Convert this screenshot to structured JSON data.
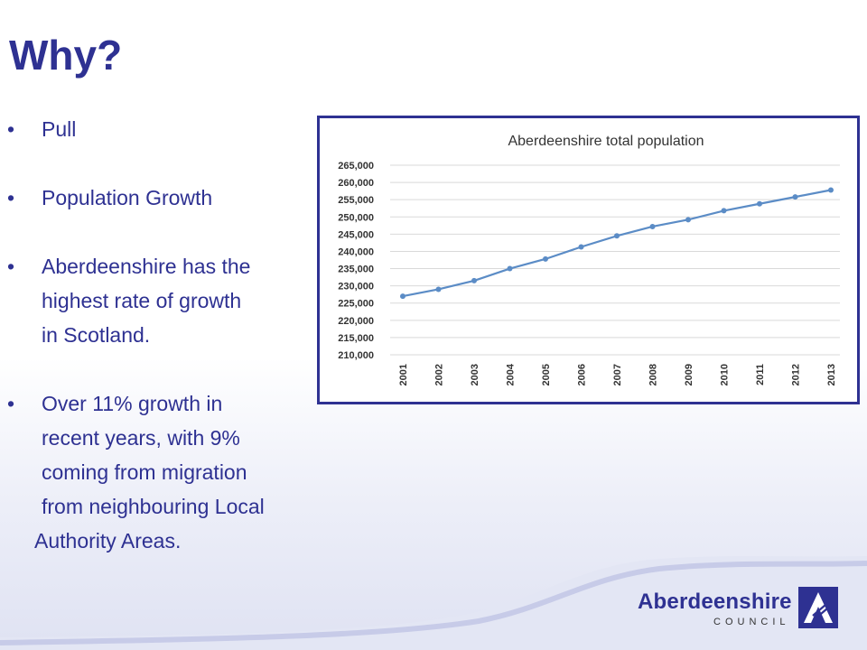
{
  "slide": {
    "title": "Why?",
    "bullets": [
      {
        "lines": [
          "Pull"
        ]
      },
      {
        "lines": [
          "Population Growth"
        ]
      },
      {
        "lines": [
          "Aberdeenshire has the",
          "highest rate of growth",
          "in Scotland."
        ]
      },
      {
        "lines": [
          "Over 11% growth in",
          "recent years, with 9%",
          "coming from migration",
          "from neighbouring Local"
        ],
        "outdented_line": "Authority Areas."
      }
    ],
    "bullet_symbol": "•"
  },
  "logo": {
    "name": "Aberdeenshire",
    "subtitle": "COUNCIL",
    "icon": "council-mark-icon"
  },
  "colors": {
    "title": "#2e3192",
    "text": "#2e3192",
    "series": "#5b8cc6",
    "frame": "#2e3192",
    "wave": "#c7cbe8"
  },
  "chart_data": {
    "type": "line",
    "title": "Aberdeenshire total population",
    "xlabel": "",
    "ylabel": "",
    "x": [
      "2001",
      "2002",
      "2003",
      "2004",
      "2005",
      "2006",
      "2007",
      "2008",
      "2009",
      "2010",
      "2011",
      "2012",
      "2013"
    ],
    "series": [
      {
        "values": [
          227000,
          229000,
          231500,
          235000,
          237800,
          241300,
          244500,
          247200,
          249200,
          251800,
          253800,
          255800,
          257800
        ]
      }
    ],
    "ylim": [
      210000,
      265000
    ],
    "yticks": [
      "210,000",
      "215,000",
      "220,000",
      "225,000",
      "230,000",
      "235,000",
      "240,000",
      "245,000",
      "250,000",
      "255,000",
      "260,000",
      "265,000"
    ],
    "grid": true,
    "legend": "none"
  }
}
